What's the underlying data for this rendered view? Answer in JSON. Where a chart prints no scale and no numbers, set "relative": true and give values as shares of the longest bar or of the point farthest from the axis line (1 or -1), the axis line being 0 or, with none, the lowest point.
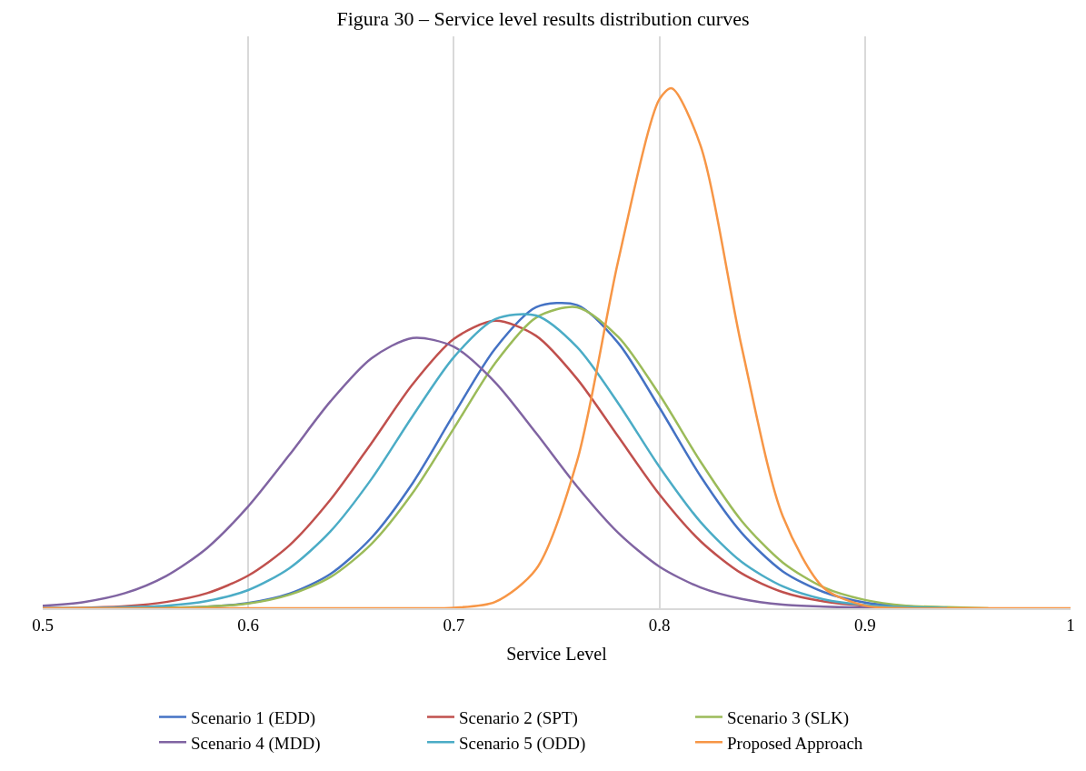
{
  "chart_data": {
    "type": "line",
    "title": "Figura 30 – Service level results distribution curves",
    "xlabel": "Service Level",
    "relative": true,
    "x": [
      0.5,
      0.52,
      0.54,
      0.56,
      0.58,
      0.6,
      0.62,
      0.64,
      0.66,
      0.68,
      0.7,
      0.72,
      0.74,
      0.76,
      0.78,
      0.8,
      0.82,
      0.84,
      0.86,
      0.88,
      0.9,
      0.92,
      0.94,
      0.96
    ],
    "xlim": [
      0.5,
      1
    ],
    "xticks": [
      0.5,
      0.6,
      0.7,
      0.8,
      0.9,
      1
    ],
    "grid": "x",
    "legend": "bottom",
    "marker": "none",
    "line_style": "solid",
    "series": [
      {
        "name": "Scenario 1 (EDD)",
        "color": "#4472c4",
        "values": [
          0,
          0,
          0,
          0.001,
          0.003,
          0.01,
          0.028,
          0.066,
          0.136,
          0.241,
          0.373,
          0.499,
          0.579,
          0.583,
          0.51,
          0.386,
          0.254,
          0.145,
          0.071,
          0.031,
          0.011,
          0.004,
          0.001,
          null
        ]
      },
      {
        "name": "Scenario 2 (SPT)",
        "color": "#c0504d",
        "values": [
          0,
          0.001,
          0.004,
          0.012,
          0.029,
          0.063,
          0.121,
          0.209,
          0.318,
          0.431,
          0.518,
          0.553,
          0.524,
          0.441,
          0.33,
          0.219,
          0.129,
          0.067,
          0.031,
          0.013,
          0.005,
          0.002,
          null,
          null
        ]
      },
      {
        "name": "Scenario 3 (SLK)",
        "color": "#9bbb59",
        "values": [
          0,
          0,
          0,
          0.001,
          0.003,
          0.009,
          0.026,
          0.06,
          0.124,
          0.222,
          0.346,
          0.471,
          0.559,
          0.579,
          0.522,
          0.411,
          0.282,
          0.168,
          0.088,
          0.04,
          0.016,
          0.005,
          0.002,
          0
        ]
      },
      {
        "name": "Scenario 4 (MDD)",
        "color": "#8064a2",
        "values": [
          0.005,
          0.012,
          0.029,
          0.062,
          0.116,
          0.196,
          0.295,
          0.398,
          0.481,
          0.52,
          0.503,
          0.435,
          0.337,
          0.234,
          0.145,
          0.08,
          0.04,
          0.018,
          0.007,
          0.003,
          0.001,
          0,
          null,
          null
        ]
      },
      {
        "name": "Scenario 5 (ODD)",
        "color": "#4bacc6",
        "values": [
          0,
          0,
          0.002,
          0.005,
          0.014,
          0.035,
          0.077,
          0.148,
          0.249,
          0.37,
          0.483,
          0.556,
          0.563,
          0.502,
          0.394,
          0.272,
          0.166,
          0.089,
          0.042,
          0.017,
          0.006,
          0.002,
          0.001,
          null
        ]
      },
      {
        "name": "Proposed Approach",
        "color": "#f79646",
        "x": [
          0.5,
          0.6,
          0.68,
          0.7,
          0.72,
          0.74,
          0.76,
          0.78,
          0.8,
          0.806,
          0.82,
          0.84,
          0.86,
          0.88,
          0.9,
          0.92,
          0.96,
          1.0
        ],
        "values": [
          0,
          0,
          0,
          0.001,
          0.012,
          0.075,
          0.284,
          0.669,
          0.979,
          1,
          0.89,
          0.503,
          0.177,
          0.039,
          0.005,
          0,
          0,
          0
        ]
      }
    ]
  }
}
